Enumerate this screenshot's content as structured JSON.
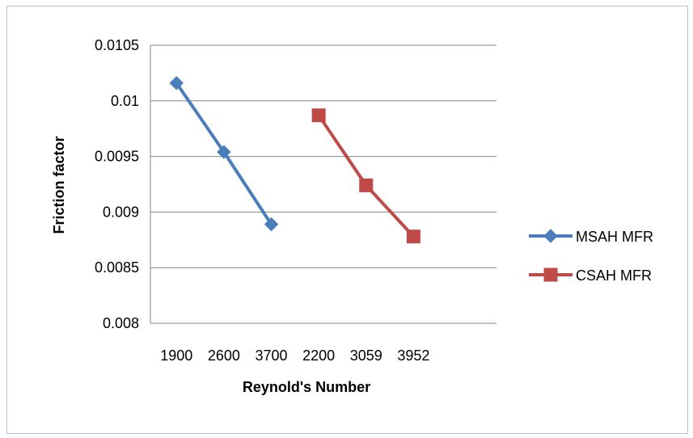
{
  "chart_data": {
    "type": "line",
    "title": "",
    "xlabel": "Reynold's Number",
    "ylabel": "Friction factor",
    "categories": [
      "1900",
      "2600",
      "3700",
      "2200",
      "3059",
      "3952"
    ],
    "ylim": [
      0.008,
      0.0105
    ],
    "y_ticks": [
      "0.008",
      "0.0085",
      "0.009",
      "0.0095",
      "0.01",
      "0.0105"
    ],
    "grid": true,
    "legend_position": "right",
    "series": [
      {
        "name": "MSAH MFR",
        "color": "#4a7ebb",
        "marker": "diamond",
        "values": [
          0.01016,
          0.00954,
          0.00889,
          null,
          null,
          null
        ]
      },
      {
        "name": "CSAH MFR",
        "color": "#be4b48",
        "marker": "square",
        "values": [
          null,
          null,
          null,
          0.00987,
          0.00924,
          0.00878
        ]
      }
    ]
  }
}
